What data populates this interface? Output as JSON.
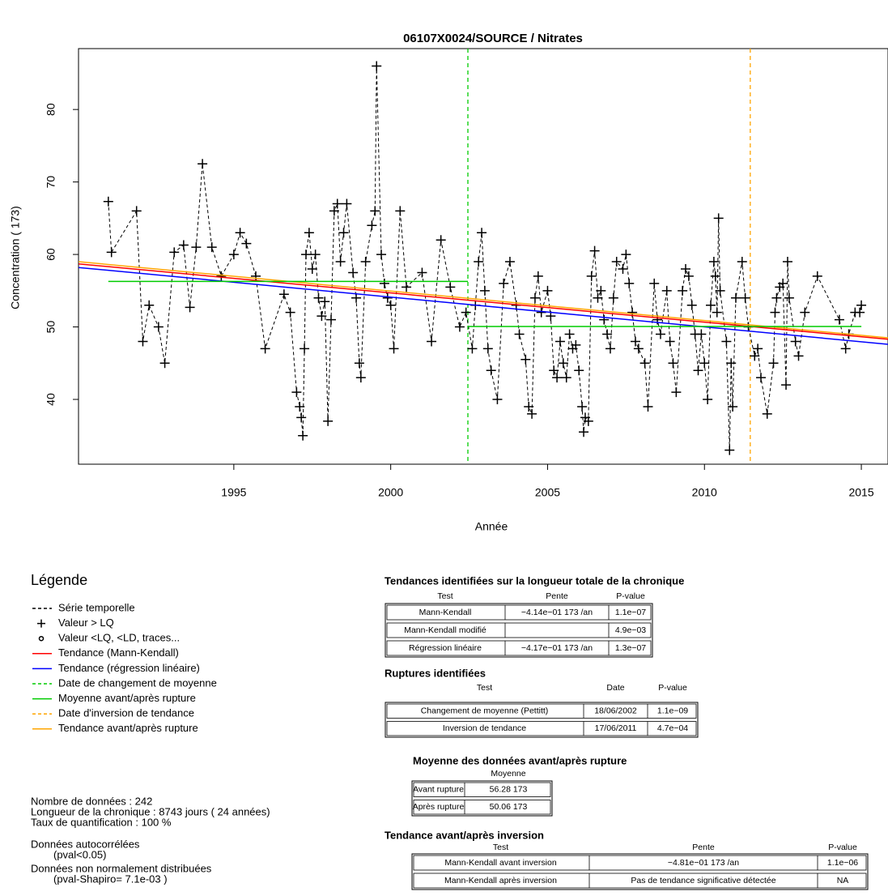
{
  "chart_data": {
    "type": "line",
    "title": "06107X0024/SOURCE / Nitrates",
    "x_label": "Année",
    "y_label": "Concentration ( 173)",
    "xlim": [
      1990.05,
      2015.85
    ],
    "ylim": [
      31.06,
      88.4
    ],
    "xticks": [
      1995,
      2000,
      2005,
      2010,
      2015
    ],
    "yticks": [
      40,
      50,
      60,
      70,
      80
    ],
    "series": [
      {
        "style": "dashed",
        "marker": "+",
        "color": "#000000",
        "x": [
          1991.0,
          1991.1,
          1991.9,
          1992.1,
          1992.3,
          1992.6,
          1992.8,
          1993.1,
          1993.4,
          1993.6,
          1993.8,
          1994.0,
          1994.3,
          1994.6,
          1995.0,
          1995.2,
          1995.4,
          1995.7,
          1996.0,
          1996.6,
          1996.8,
          1997.0,
          1997.1,
          1997.15,
          1997.2,
          1997.25,
          1997.3,
          1997.4,
          1997.5,
          1997.6,
          1997.7,
          1997.8,
          1997.9,
          1998.0,
          1998.1,
          1998.2,
          1998.3,
          1998.4,
          1998.5,
          1998.6,
          1998.8,
          1998.9,
          1999.0,
          1999.05,
          1999.2,
          1999.4,
          1999.5,
          1999.55,
          1999.7,
          1999.8,
          1999.9,
          2000.0,
          2000.1,
          2000.3,
          2000.5,
          2001.0,
          2001.3,
          2001.6,
          2001.9,
          2002.2,
          2002.4,
          2002.6,
          2002.7,
          2002.8,
          2002.9,
          2003.0,
          2003.1,
          2003.2,
          2003.4,
          2003.6,
          2003.8,
          2004.0,
          2004.1,
          2004.3,
          2004.4,
          2004.5,
          2004.6,
          2004.7,
          2004.8,
          2005.0,
          2005.1,
          2005.2,
          2005.3,
          2005.4,
          2005.5,
          2005.6,
          2005.7,
          2005.8,
          2005.9,
          2006.0,
          2006.1,
          2006.15,
          2006.2,
          2006.3,
          2006.4,
          2006.5,
          2006.6,
          2006.7,
          2006.8,
          2006.9,
          2007.0,
          2007.1,
          2007.2,
          2007.4,
          2007.5,
          2007.6,
          2007.7,
          2007.8,
          2007.9,
          2008.1,
          2008.2,
          2008.4,
          2008.5,
          2008.6,
          2008.8,
          2008.9,
          2009.0,
          2009.1,
          2009.3,
          2009.4,
          2009.5,
          2009.6,
          2009.7,
          2009.8,
          2009.9,
          2010.0,
          2010.1,
          2010.2,
          2010.3,
          2010.35,
          2010.4,
          2010.45,
          2010.5,
          2010.7,
          2010.8,
          2010.85,
          2010.9,
          2011.0,
          2011.2,
          2011.3,
          2011.4,
          2011.6,
          2011.7,
          2011.8,
          2012.0,
          2012.2,
          2012.25,
          2012.3,
          2012.4,
          2012.5,
          2012.6,
          2012.65,
          2012.7,
          2012.9,
          2013.0,
          2013.2,
          2013.6,
          2014.3,
          2014.5,
          2014.6,
          2014.8,
          2014.95,
          2015.0
        ],
        "values": [
          67.3,
          60.3,
          66,
          48,
          53,
          50,
          45,
          60.3,
          61.3,
          52.7,
          61,
          72.5,
          61,
          57,
          60,
          63,
          61.5,
          57,
          47,
          54.5,
          52,
          41,
          39,
          37.5,
          35,
          47,
          60,
          63,
          58,
          60,
          54,
          51.5,
          53.5,
          37,
          51,
          66,
          67,
          59,
          63,
          67,
          57.5,
          54,
          45,
          43,
          59,
          64,
          66,
          86,
          60,
          56,
          54,
          53,
          47,
          66,
          55.5,
          57.5,
          48,
          62,
          55.5,
          50,
          52,
          47,
          53,
          59,
          63,
          55,
          47,
          44,
          40,
          56,
          59,
          53,
          49,
          45.5,
          39,
          38,
          54,
          57,
          52,
          55,
          51.5,
          44,
          43,
          48,
          45,
          43,
          49,
          47,
          47.5,
          44,
          39,
          35.5,
          37.5,
          37,
          57,
          60.5,
          54,
          55,
          51,
          49,
          47,
          54,
          59,
          58,
          60,
          56,
          52,
          48,
          47,
          45,
          39,
          56,
          51,
          49,
          55,
          48,
          45,
          41,
          55,
          58,
          57,
          53,
          49,
          44,
          49,
          45,
          40,
          53,
          59,
          57,
          52,
          65,
          55,
          48,
          33,
          45,
          39,
          54,
          59,
          54,
          50,
          46,
          47,
          43,
          38,
          45,
          52,
          54,
          55.5,
          56,
          42,
          59,
          54,
          48,
          46,
          52,
          57,
          51,
          47,
          49,
          52,
          52,
          53
        ]
      },
      {
        "style": "solid",
        "color": "#ff0000",
        "x": [
          1990.05,
          2015.85
        ],
        "values": [
          58.7,
          48.3
        ]
      },
      {
        "style": "solid",
        "color": "#0000ff",
        "x": [
          1990.05,
          2015.85
        ],
        "values": [
          58.2,
          47.6
        ]
      },
      {
        "style": "solid",
        "color": "#ffa500",
        "x": [
          1990.05,
          2015.85
        ],
        "values": [
          59.0,
          48.5
        ]
      },
      {
        "style": "solid",
        "color": "#00cc00",
        "x": [
          1991.0,
          2002.46
        ],
        "values": [
          56.28,
          56.28
        ]
      },
      {
        "style": "solid",
        "color": "#00cc00",
        "x": [
          2002.46,
          2015.0
        ],
        "values": [
          50.06,
          50.06
        ]
      }
    ],
    "vlines": [
      {
        "x": 2002.46,
        "color": "#00cc00"
      },
      {
        "x": 2011.46,
        "color": "#ffa500"
      }
    ],
    "legend_title": "Légende",
    "legend": [
      {
        "label": "Série temporelle",
        "symbol": "dashed",
        "color": "#000000"
      },
      {
        "label": "Valeur > LQ",
        "symbol": "plus",
        "color": "#000000"
      },
      {
        "label": "Valeur <LQ, <LD, traces...",
        "symbol": "circle",
        "color": "#000000"
      },
      {
        "label": "Tendance (Mann-Kendall)",
        "symbol": "solid",
        "color": "#ff0000"
      },
      {
        "label": "Tendance (régression linéaire)",
        "symbol": "solid",
        "color": "#0000ff"
      },
      {
        "label": "Date de changement de moyenne",
        "symbol": "dashed",
        "color": "#00cc00"
      },
      {
        "label": "Moyenne avant/après rupture",
        "symbol": "solid",
        "color": "#00cc00"
      },
      {
        "label": "Date d'inversion de tendance",
        "symbol": "dashed",
        "color": "#ffa500"
      },
      {
        "label": "Tendance avant/après rupture",
        "symbol": "solid",
        "color": "#ffa500"
      }
    ],
    "stats": [
      "Nombre de données : 242",
      "Longueur de la chronique : 8743 jours ( 24 années)",
      "Taux de quantification : 100 %"
    ],
    "notes": [
      "Données autocorrélées",
      "(pval<0.05)",
      "Données non normalement distribuées",
      "(pval-Shapiro= 7.1e-03 )"
    ],
    "tables": [
      {
        "title": "Tendances identifiées sur la longueur totale de la chronique",
        "columns": [
          "Test",
          "Pente",
          "P-value"
        ],
        "rows": [
          [
            "Mann-Kendall",
            "−4.14e−01 173 /an",
            "1.1e−07"
          ],
          [
            "Mann-Kendall modifié",
            null,
            "4.9e−03"
          ],
          [
            "Régression linéaire",
            "−4.17e−01 173 /an",
            "1.3e−07"
          ]
        ]
      },
      {
        "title": "Ruptures identifiées",
        "columns": [
          "Test",
          "Date",
          "P-value"
        ],
        "rows": [
          [
            "Changement de moyenne (Pettitt)",
            "18/06/2002",
            "1.1e−09"
          ],
          [
            "Inversion de tendance",
            "17/06/2011",
            "4.7e−04"
          ]
        ]
      },
      {
        "title": "Moyenne des données avant/après rupture",
        "columns": [
          null,
          "Moyenne"
        ],
        "rows": [
          [
            "Avant rupture",
            "56.28 173"
          ],
          [
            "Après rupture",
            "50.06 173"
          ]
        ]
      },
      {
        "title": "Tendance avant/après inversion",
        "columns": [
          "Test",
          "Pente",
          "P-value"
        ],
        "rows": [
          [
            "Mann-Kendall avant inversion",
            "−4.81e−01 173 /an",
            "1.1e−06"
          ],
          [
            "Mann-Kendall après inversion",
            "Pas de tendance significative détectée",
            "NA"
          ]
        ]
      }
    ]
  }
}
